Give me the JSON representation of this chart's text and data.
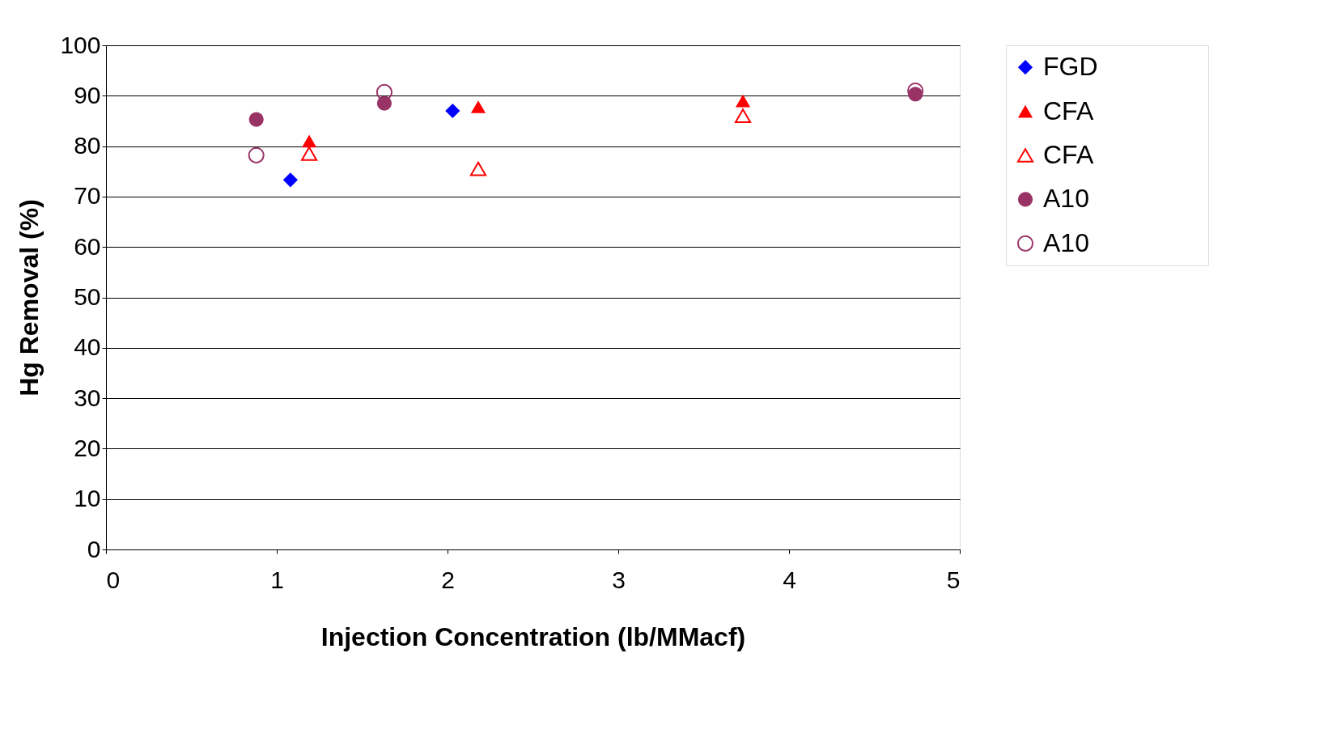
{
  "chart_data": {
    "type": "scatter",
    "xlabel": "Injection Concentration (lb/MMacf)",
    "ylabel": "Hg Removal (%)",
    "xlim": [
      0,
      5
    ],
    "xticks": [
      0,
      1,
      2,
      3,
      4,
      5
    ],
    "ylim": [
      0,
      100
    ],
    "yticks": [
      0,
      10,
      20,
      30,
      40,
      50,
      60,
      70,
      80,
      90,
      100
    ],
    "grid": "y",
    "legend": "right",
    "series": [
      {
        "name": "FGD",
        "color": "#0000ff",
        "marker": "diamond",
        "x": [
          1.08,
          2.03
        ],
        "values": [
          73.3,
          87
        ]
      },
      {
        "name": "CFA",
        "color": "#ff0000",
        "marker": "triangle",
        "x": [
          1.19,
          2.18,
          3.73
        ],
        "values": [
          81,
          87.8,
          89
        ]
      },
      {
        "name": "CFA",
        "color": "#ff0000",
        "marker": "triangle-open",
        "x": [
          1.19,
          2.18,
          3.73
        ],
        "values": [
          78.5,
          75.5,
          86
        ]
      },
      {
        "name": "A10",
        "color": "#993366",
        "marker": "circle",
        "x": [
          0.88,
          1.63,
          4.74
        ],
        "values": [
          85.3,
          88.5,
          90.3
        ]
      },
      {
        "name": "A10",
        "color": "#993366",
        "marker": "circle-open",
        "x": [
          0.88,
          1.63,
          4.74
        ],
        "values": [
          78.2,
          90.7,
          91
        ]
      }
    ]
  }
}
